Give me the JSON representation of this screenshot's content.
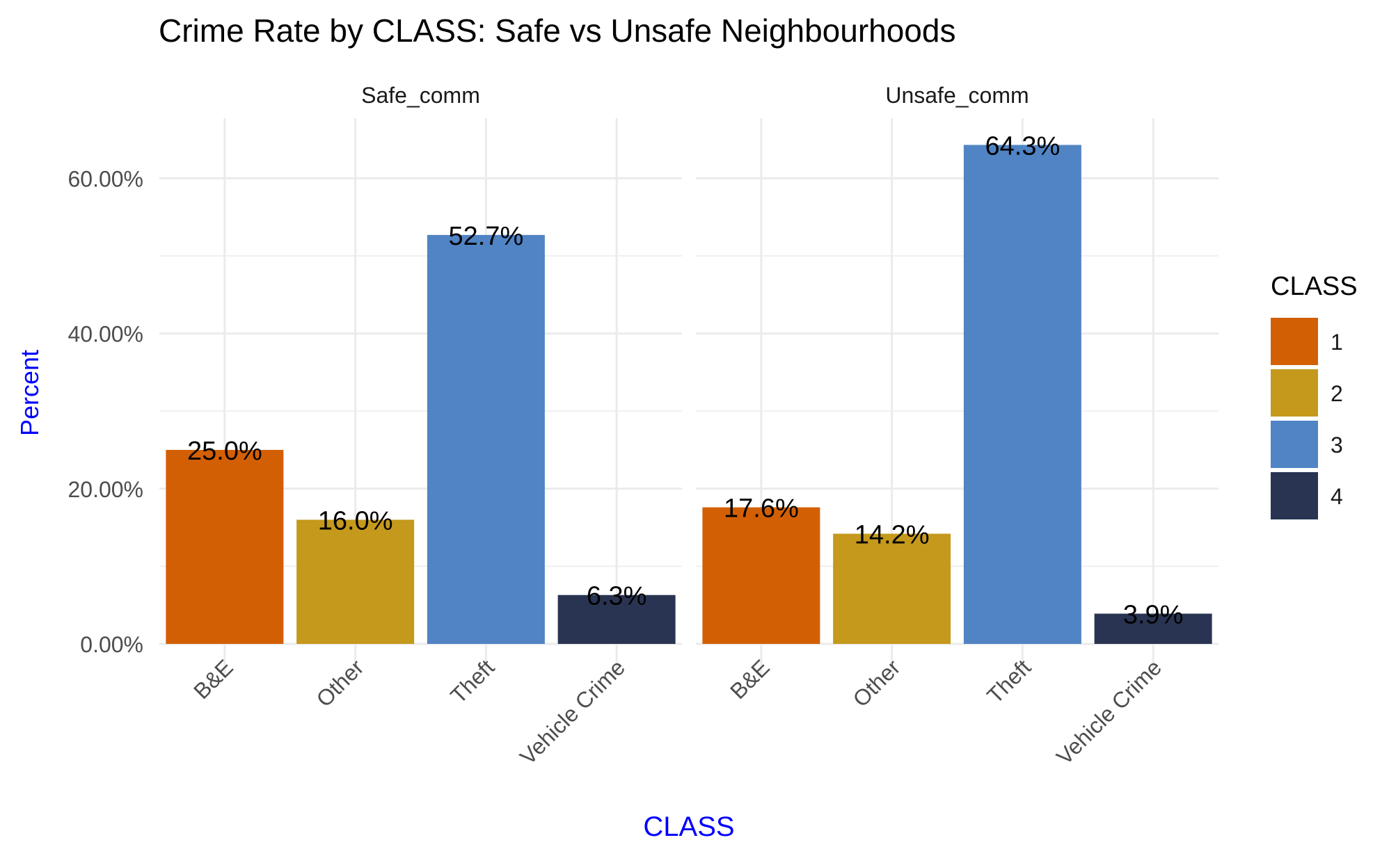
{
  "chart_data": {
    "type": "bar",
    "title": "Crime Rate by CLASS: Safe vs Unsafe Neighbourhoods",
    "xlabel": "CLASS",
    "ylabel": "Percent",
    "ylim": [
      0,
      67
    ],
    "y_ticks": [
      {
        "value": 0,
        "label": "0.00%"
      },
      {
        "value": 20,
        "label": "20.00%"
      },
      {
        "value": 40,
        "label": "40.00%"
      },
      {
        "value": 60,
        "label": "60.00%"
      }
    ],
    "categories": [
      "B&E",
      "Other",
      "Theft",
      "Vehicle Crime"
    ],
    "grid": true,
    "legend": {
      "title": "CLASS",
      "position": "right",
      "entries": [
        {
          "label": "1",
          "color": "#D35F05"
        },
        {
          "label": "2",
          "color": "#C4991C"
        },
        {
          "label": "3",
          "color": "#5084C4"
        },
        {
          "label": "4",
          "color": "#293452"
        }
      ]
    },
    "panels": [
      {
        "name": "Safe_comm",
        "values": [
          25.0,
          16.0,
          52.7,
          6.3
        ],
        "labels": [
          "25.0%",
          "16.0%",
          "52.7%",
          "6.3%"
        ]
      },
      {
        "name": "Unsafe_comm",
        "values": [
          17.6,
          14.2,
          64.3,
          3.9
        ],
        "labels": [
          "17.6%",
          "14.2%",
          "64.3%",
          "3.9%"
        ]
      }
    ],
    "colors": {
      "title": "#000000",
      "axis_label": "#0000FF",
      "tick": "#4D4D4D",
      "grid": "#EBEBEB"
    }
  }
}
